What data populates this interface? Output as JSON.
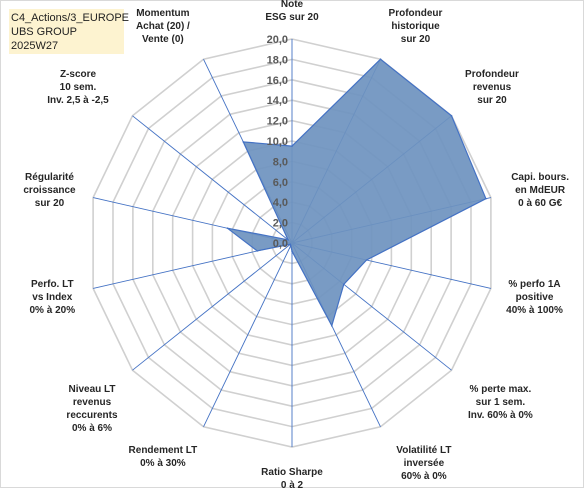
{
  "header": {
    "line1": "C4_Actions/3_EUROPE",
    "line2": "UBS GROUP",
    "line3": "2025W27"
  },
  "colors": {
    "fill": "#6e92bf",
    "stroke": "#4472c4",
    "grid": "#d0d0d0",
    "spoke": "#4472c4"
  },
  "chart_data": {
    "type": "radar",
    "rlim": [
      0,
      20
    ],
    "ticks": [
      "0,0",
      "2,0",
      "4,0",
      "6,0",
      "8,0",
      "10,0",
      "12,0",
      "14,0",
      "16,0",
      "18,0",
      "20,0"
    ],
    "categories": [
      [
        "Note",
        "ESG sur 20"
      ],
      [
        "Profondeur",
        "historique",
        "sur 20"
      ],
      [
        "Profondeur",
        "revenus",
        "sur 20"
      ],
      [
        "Capi. bours.",
        "en MdEUR",
        "0 à 60 G€"
      ],
      [
        "% perfo 1A",
        "positive",
        "40% à 100%"
      ],
      [
        "% perte max.",
        "sur 1 sem.",
        "Inv. 60% à 0%"
      ],
      [
        "Volatilité LT",
        "inversée",
        "60% à 0%"
      ],
      [
        "Ratio Sharpe",
        "0 à 2"
      ],
      [
        "Rendement LT",
        "0% à 30%"
      ],
      [
        "Niveau LT",
        "revenus",
        "reccurents",
        "0% à 6%"
      ],
      [
        "Perfo. LT",
        "vs Index",
        "0% à 20%"
      ],
      [
        "Régularité",
        "croissance",
        "sur 20"
      ],
      [
        "Z-score",
        "10 sem.",
        "Inv. 2,5 à -2,5"
      ],
      [
        "Momentum",
        "Achat (20) /",
        "Vente (0)"
      ]
    ],
    "series": [
      {
        "values": [
          9.5,
          20,
          20,
          19.5,
          7.5,
          6.5,
          9,
          0.8,
          0.3,
          0.2,
          3.5,
          6.5,
          0.5,
          11
        ]
      }
    ],
    "grid": true,
    "legend": "none"
  }
}
